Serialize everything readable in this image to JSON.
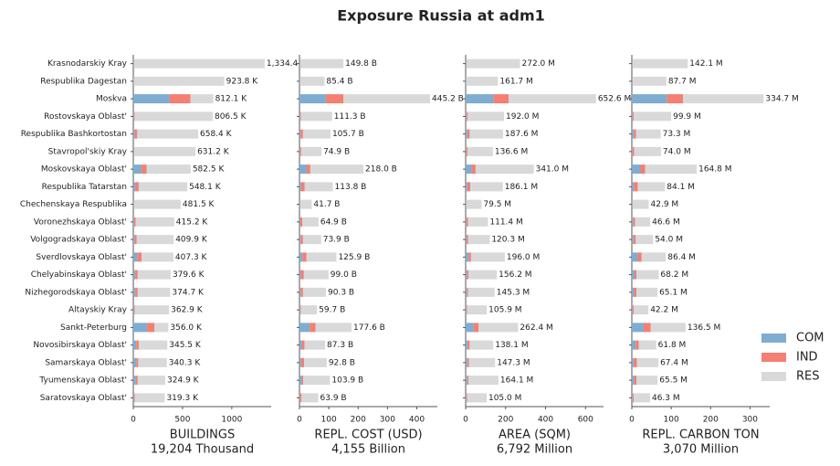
{
  "title": "Exposure Russia at adm1",
  "chart_data": [
    {
      "type": "bar",
      "orientation": "horizontal",
      "xlabel": "BUILDINGS",
      "subtitle": "19,204 Thousand",
      "categories": [
        "Krasnodarskiy Kray",
        "Respublika Dagestan",
        "Moskva",
        "Rostovskaya Oblast'",
        "Respublika Bashkortostan",
        "Stavropol'skiy Kray",
        "Moskovskaya Oblast'",
        "Respublika Tatarstan",
        "Chechenskaya Respublika",
        "Voronezhskaya Oblast'",
        "Volgogradskaya Oblast'",
        "Sverdlovskaya Oblast'",
        "Chelyabinskaya Oblast'",
        "Nizhegorodskaya Oblast'",
        "Altayskiy Kray",
        "Sankt-Peterburg",
        "Novosibirskaya Oblast'",
        "Samarskaya Oblast'",
        "Tyumenskaya Oblast'",
        "Saratovskaya Oblast'"
      ],
      "series": [
        {
          "name": "COM",
          "color": "#7eadd1",
          "values": [
            3,
            2,
            370,
            5,
            15,
            5,
            85,
            20,
            3,
            8,
            15,
            40,
            20,
            20,
            5,
            140,
            30,
            30,
            25,
            5
          ]
        },
        {
          "name": "IND",
          "color": "#f47f72",
          "values": [
            2,
            1,
            210,
            8,
            25,
            5,
            50,
            35,
            2,
            15,
            20,
            45,
            25,
            25,
            10,
            75,
            25,
            20,
            20,
            10
          ]
        },
        {
          "name": "RES",
          "color": "#d9d9d9",
          "values": [
            1329.4,
            920.8,
            232.1,
            793.5,
            618.4,
            621.2,
            447.5,
            493.1,
            476.5,
            392.2,
            374.9,
            322.3,
            334.6,
            329.7,
            347.9,
            141.0,
            290.5,
            290.3,
            279.9,
            304.3
          ]
        }
      ],
      "total_labels": [
        "1,334.4 K",
        "923.8 K",
        "812.1 K",
        "806.5 K",
        "658.4 K",
        "631.2 K",
        "582.5 K",
        "548.1 K",
        "481.5 K",
        "415.2 K",
        "409.9 K",
        "407.3 K",
        "379.6 K",
        "374.7 K",
        "362.9 K",
        "356.0 K",
        "345.5 K",
        "340.3 K",
        "324.9 K",
        "319.3 K"
      ],
      "xlim": [
        0,
        1400
      ],
      "xticks": [
        0,
        500,
        1000
      ],
      "legend": "right"
    },
    {
      "type": "bar",
      "orientation": "horizontal",
      "xlabel": "REPL. COST (USD)",
      "subtitle": "4,155 Billion",
      "series": [
        {
          "values": [
            2,
            1,
            90,
            2,
            4,
            2,
            25,
            6,
            1,
            3,
            4,
            10,
            5,
            4,
            2,
            35,
            8,
            6,
            8,
            2
          ]
        },
        {
          "values": [
            1,
            1,
            60,
            3,
            8,
            4,
            12,
            12,
            1,
            7,
            8,
            14,
            10,
            8,
            3,
            20,
            9,
            10,
            5,
            5
          ]
        },
        {
          "values": [
            146.8,
            83.4,
            295.2,
            106.3,
            93.7,
            68.9,
            181.0,
            95.8,
            39.7,
            54.9,
            61.9,
            101.9,
            84.0,
            78.3,
            54.7,
            122.6,
            70.3,
            76.8,
            90.9,
            56.9
          ]
        }
      ],
      "total_labels": [
        "149.8 B",
        "85.4 B",
        "445.2 B",
        "111.3 B",
        "105.7 B",
        "74.9 B",
        "218.0 B",
        "113.8 B",
        "41.7 B",
        "64.9 B",
        "73.9 B",
        "125.9 B",
        "99.0 B",
        "90.3 B",
        "59.7 B",
        "177.6 B",
        "87.3 B",
        "92.8 B",
        "103.9 B",
        "63.9 B"
      ],
      "xlim": [
        0,
        470
      ],
      "xticks": [
        0,
        100,
        200,
        300,
        400
      ]
    },
    {
      "type": "bar",
      "orientation": "horizontal",
      "xlabel": "AREA (SQM)",
      "subtitle": "6,792 Million",
      "series": [
        {
          "values": [
            2,
            2,
            140,
            4,
            8,
            3,
            30,
            8,
            2,
            4,
            5,
            15,
            6,
            6,
            3,
            40,
            10,
            8,
            8,
            3
          ]
        },
        {
          "values": [
            2,
            1,
            75,
            6,
            12,
            6,
            20,
            15,
            1,
            8,
            8,
            12,
            8,
            6,
            4,
            25,
            10,
            8,
            6,
            5
          ]
        },
        {
          "values": [
            268.0,
            158.7,
            437.6,
            182.0,
            167.6,
            127.6,
            291.0,
            163.1,
            76.5,
            99.4,
            107.3,
            169.0,
            142.2,
            133.3,
            98.9,
            197.4,
            118.1,
            131.3,
            150.1,
            97.0
          ]
        }
      ],
      "total_labels": [
        "272.0 M",
        "161.7 M",
        "652.6 M",
        "192.0 M",
        "187.6 M",
        "136.6 M",
        "341.0 M",
        "186.1 M",
        "79.5 M",
        "111.4 M",
        "120.3 M",
        "196.0 M",
        "156.2 M",
        "145.3 M",
        "105.9 M",
        "262.4 M",
        "138.1 M",
        "147.3 M",
        "164.1 M",
        "105.0 M"
      ],
      "xlim": [
        0,
        690
      ],
      "xticks": [
        0,
        200,
        400,
        600
      ]
    },
    {
      "type": "bar",
      "orientation": "horizontal",
      "xlabel": "REPL. CARBON TON",
      "subtitle": "3,070 Million",
      "series": [
        {
          "values": [
            1,
            1,
            90,
            2,
            5,
            2,
            22,
            5,
            1,
            3,
            4,
            15,
            7,
            6,
            2,
            30,
            10,
            5,
            6,
            2
          ]
        },
        {
          "values": [
            1,
            1,
            40,
            3,
            6,
            4,
            12,
            10,
            1,
            5,
            6,
            10,
            5,
            6,
            3,
            18,
            8,
            8,
            6,
            3
          ]
        },
        {
          "values": [
            140.1,
            85.7,
            204.7,
            94.9,
            62.3,
            68.0,
            130.8,
            69.1,
            40.9,
            38.6,
            44.0,
            61.4,
            56.2,
            53.1,
            37.2,
            88.5,
            43.8,
            54.4,
            53.5,
            41.3
          ]
        }
      ],
      "total_labels": [
        "142.1 M",
        "87.7 M",
        "334.7 M",
        "99.9 M",
        "73.3 M",
        "74.0 M",
        "164.8 M",
        "84.1 M",
        "42.9 M",
        "46.6 M",
        "54.0 M",
        "86.4 M",
        "68.2 M",
        "65.1 M",
        "42.2 M",
        "136.5 M",
        "61.8 M",
        "67.4 M",
        "65.5 M",
        "46.3 M"
      ],
      "xlim": [
        0,
        350
      ],
      "xticks": [
        0,
        100,
        200,
        300
      ]
    }
  ]
}
